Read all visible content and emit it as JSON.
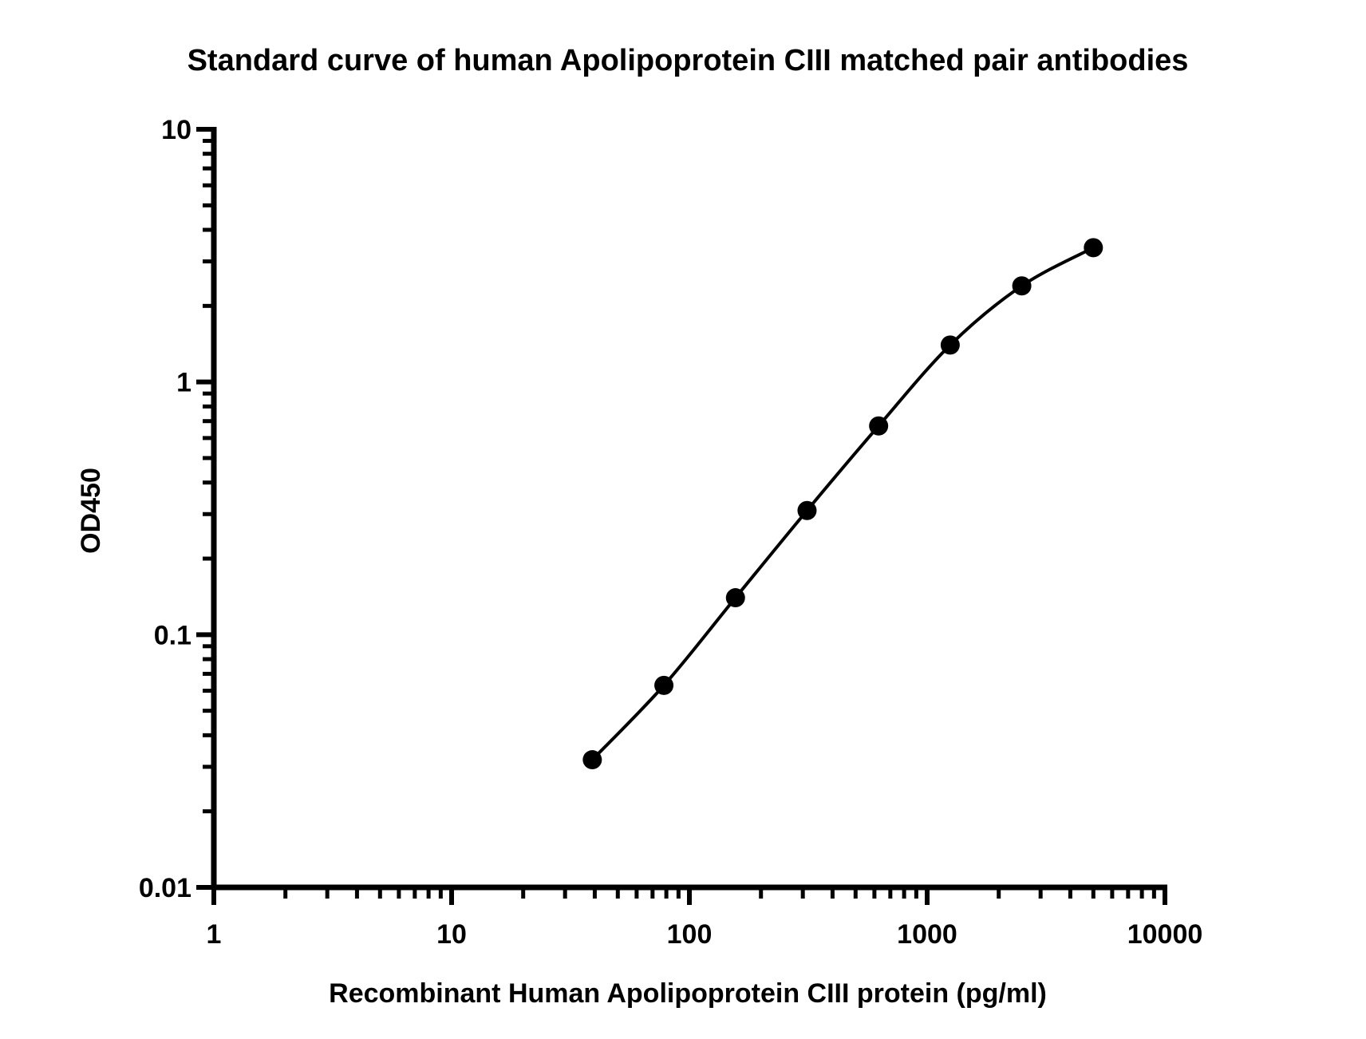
{
  "chart_data": {
    "type": "scatter",
    "title": "Standard curve of human Apolipoprotein CIII matched pair antibodies",
    "xlabel": "Recombinant Human Apolipoprotein CIII protein (pg/ml)",
    "ylabel": "OD450",
    "x_scale": "log",
    "y_scale": "log",
    "xlim": [
      1,
      10000
    ],
    "ylim": [
      0.01,
      10
    ],
    "x_ticks": [
      "1",
      "10",
      "100",
      "1000",
      "10000"
    ],
    "y_ticks": [
      "0.01",
      "0.1",
      "1",
      "10"
    ],
    "grid": false,
    "legend": "none",
    "fit_curve": true,
    "series": [
      {
        "x": [
          39.06,
          78.13,
          156.25,
          312.5,
          625,
          1250,
          2500,
          5000
        ],
        "y": [
          0.032,
          0.063,
          0.14,
          0.31,
          0.67,
          1.4,
          2.4,
          3.4
        ]
      }
    ],
    "colors": {
      "points": "#000000",
      "curve": "#000000",
      "axes": "#000000"
    }
  }
}
